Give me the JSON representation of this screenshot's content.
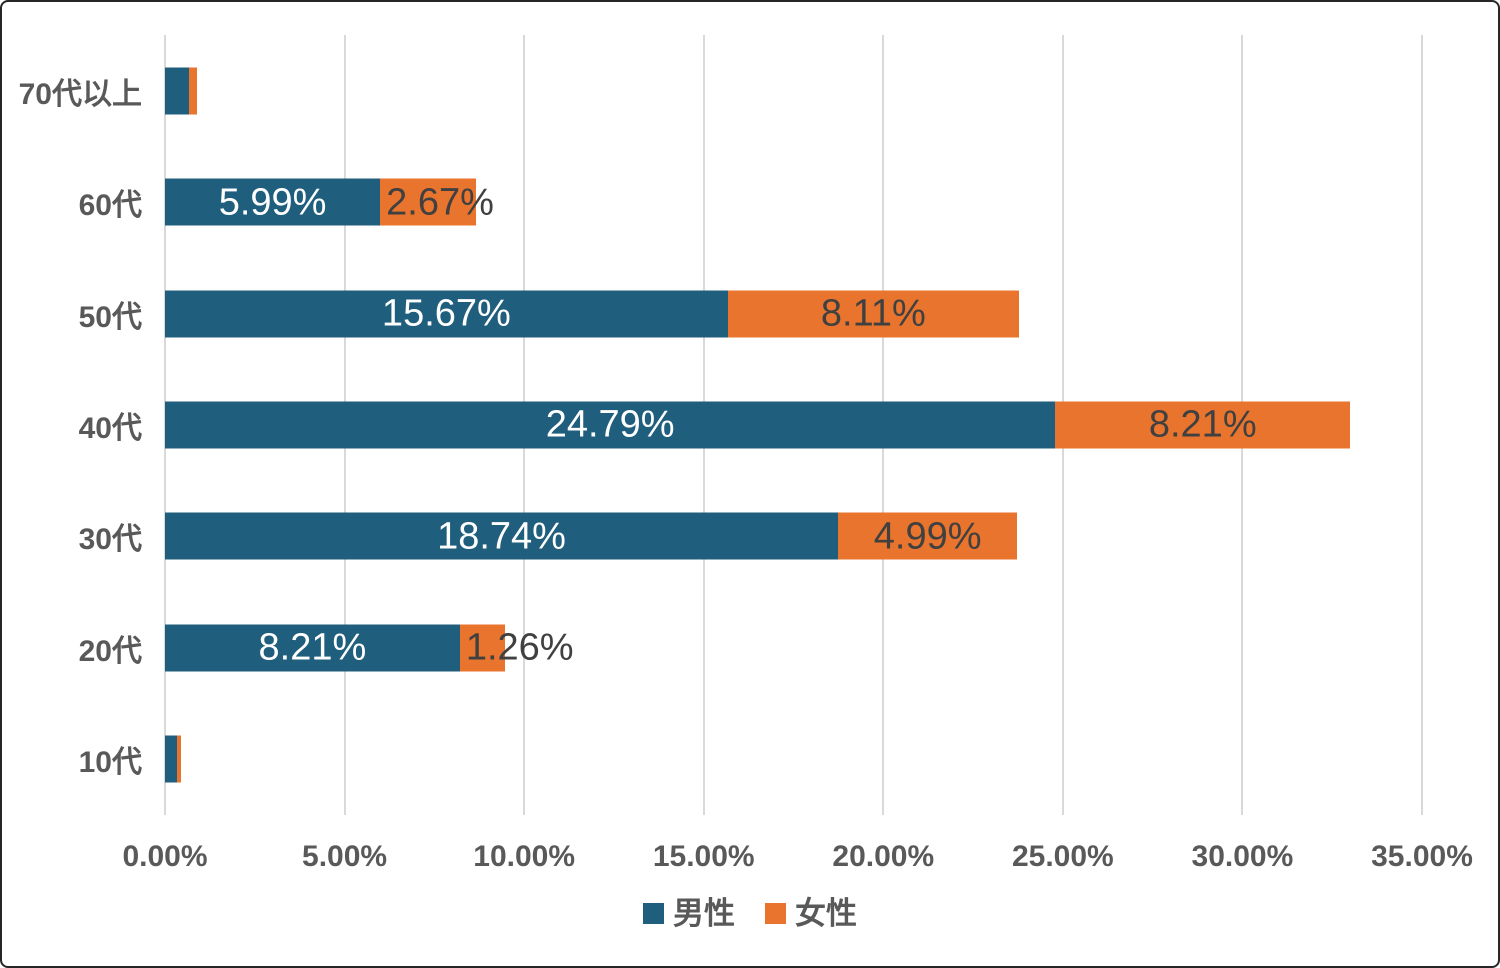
{
  "chart_data": {
    "type": "bar",
    "orientation": "horizontal",
    "stacked": true,
    "title": "",
    "categories": [
      "70代以上",
      "60代",
      "50代",
      "40代",
      "30代",
      "20代",
      "10代"
    ],
    "series": [
      {
        "name": "男性",
        "color": "#205E7E",
        "label_color": "#FFFFFF",
        "values": [
          0.66,
          5.99,
          15.67,
          24.79,
          18.74,
          8.21,
          0.33
        ],
        "labels": [
          "",
          "5.99%",
          "15.67%",
          "24.79%",
          "18.74%",
          "8.21%",
          ""
        ]
      },
      {
        "name": "女性",
        "color": "#E8742E",
        "label_color": "#404040",
        "values": [
          0.22,
          2.67,
          8.11,
          8.21,
          4.99,
          1.26,
          0.11
        ],
        "labels": [
          "",
          "2.67%",
          "8.11%",
          "8.21%",
          "4.99%",
          "1.26%",
          ""
        ]
      }
    ],
    "xlim": [
      0,
      35
    ],
    "x_tick_step": 5,
    "x_ticks": [
      "0.00%",
      "5.00%",
      "10.00%",
      "15.00%",
      "20.00%",
      "25.00%",
      "30.00%",
      "35.00%"
    ],
    "grid": true,
    "legend_position": "bottom"
  },
  "styles": {
    "gridline_color": "#D9D9D9",
    "axis_text_color": "#595959",
    "background_color": "#FFFFFF",
    "border_color": "#262626"
  }
}
